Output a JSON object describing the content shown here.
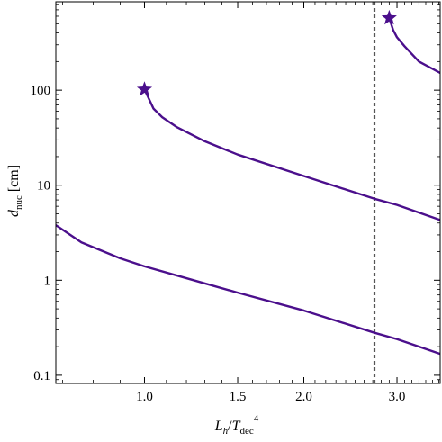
{
  "chart_data": {
    "type": "line",
    "title": "",
    "xlabel": {
      "main": "L",
      "main_sub": "h",
      "sep": "/",
      "denom": "T",
      "denom_sub": "dec",
      "denom_sup": "4"
    },
    "ylabel": {
      "main": "d",
      "sub": "nuc",
      "unit": " [cm]"
    },
    "xscale": "log",
    "yscale": "log",
    "xlim": [
      0.68,
      3.62
    ],
    "ylim": [
      0.082,
      850
    ],
    "xticks": [
      {
        "value": 1.0,
        "label": "1.0"
      },
      {
        "value": 1.5,
        "label": "1.5"
      },
      {
        "value": 2.0,
        "label": "2.0"
      },
      {
        "value": 3.0,
        "label": "3.0"
      }
    ],
    "yticks": [
      {
        "value": 0.1,
        "label": "0.1"
      },
      {
        "value": 1,
        "label": "1"
      },
      {
        "value": 10,
        "label": "10"
      },
      {
        "value": 100,
        "label": "100"
      }
    ],
    "grid": false,
    "legend": "none",
    "series_color": "#4b0f8c",
    "vline": {
      "x": 2.72,
      "style": "dashed",
      "color": "#555555"
    },
    "series": [
      {
        "x": [
          0.68,
          0.76,
          0.9,
          1.0,
          1.2,
          1.5,
          2.0,
          2.72,
          3.0,
          3.62
        ],
        "y": [
          3.8,
          2.5,
          1.7,
          1.4,
          1.05,
          0.74,
          0.48,
          0.28,
          0.24,
          0.168
        ]
      },
      {
        "x": [
          1.0,
          1.04,
          1.08,
          1.15,
          1.3,
          1.5,
          2.0,
          2.72,
          3.0,
          3.62
        ],
        "y": [
          102,
          64,
          52,
          41,
          29,
          21,
          12.5,
          7.2,
          6.2,
          4.3
        ]
      },
      {
        "x": [
          2.9,
          2.95,
          3.0,
          3.1,
          3.3,
          3.62
        ],
        "y": [
          575,
          430,
          360,
          290,
          200,
          152
        ]
      }
    ],
    "markers": [
      {
        "shape": "star",
        "x": 1.0,
        "y": 102
      },
      {
        "shape": "star",
        "x": 2.9,
        "y": 575
      }
    ]
  }
}
